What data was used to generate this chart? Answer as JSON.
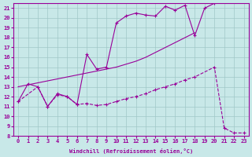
{
  "xlabel": "Windchill (Refroidissement éolien,°C)",
  "bg_color": "#c8e8e8",
  "line_color": "#990099",
  "xlim": [
    -0.5,
    23.5
  ],
  "ylim": [
    8,
    21.5
  ],
  "xticks": [
    0,
    1,
    2,
    3,
    4,
    5,
    6,
    7,
    8,
    9,
    10,
    11,
    12,
    13,
    14,
    15,
    16,
    17,
    18,
    19,
    20,
    21,
    22,
    23
  ],
  "yticks": [
    8,
    9,
    10,
    11,
    12,
    13,
    14,
    15,
    16,
    17,
    18,
    19,
    20,
    21
  ],
  "line1_x": [
    0,
    1,
    2,
    3,
    4,
    5,
    6,
    7,
    8,
    9,
    10,
    11,
    12,
    13,
    14,
    15,
    16,
    17,
    18,
    19,
    20
  ],
  "line1_y": [
    11.5,
    13.3,
    13.0,
    11.0,
    12.3,
    12.0,
    11.2,
    16.3,
    14.8,
    15.0,
    19.5,
    20.2,
    20.5,
    20.3,
    20.2,
    21.2,
    20.8,
    21.3,
    18.2,
    21.0,
    21.5
  ],
  "line2_x": [
    0,
    1,
    2,
    3,
    4,
    5,
    6,
    7,
    8,
    9,
    10,
    11,
    12,
    13,
    14,
    15,
    16,
    17,
    18
  ],
  "line2_y": [
    13.0,
    13.2,
    13.4,
    13.6,
    13.8,
    14.0,
    14.2,
    14.4,
    14.6,
    14.8,
    15.0,
    15.3,
    15.6,
    16.0,
    16.5,
    17.0,
    17.5,
    18.0,
    18.5
  ],
  "line3_x": [
    0,
    2,
    3,
    4,
    5,
    6,
    7,
    8,
    9,
    10,
    11,
    12,
    13,
    14,
    15,
    16,
    17,
    18,
    20,
    21,
    22,
    23
  ],
  "line3_y": [
    11.5,
    13.0,
    11.0,
    12.2,
    12.0,
    11.2,
    11.3,
    11.1,
    11.2,
    11.5,
    11.8,
    12.0,
    12.3,
    12.7,
    13.0,
    13.3,
    13.7,
    14.0,
    15.0,
    8.8,
    8.3,
    8.3
  ]
}
